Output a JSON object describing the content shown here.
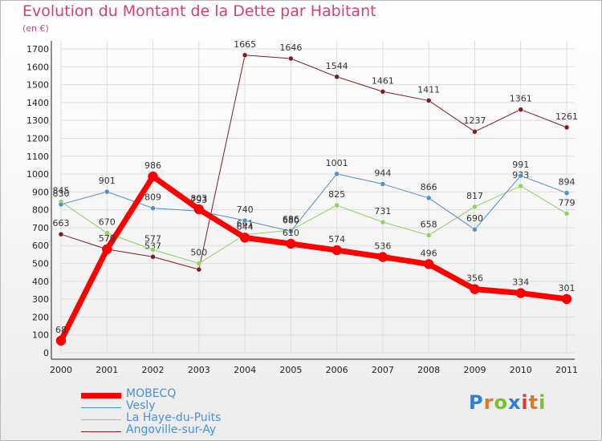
{
  "header": {
    "title": "Evolution du Montant de la Dette par Habitant",
    "subtitle": "(en €)"
  },
  "colors": {
    "title": "#d0407a",
    "axis": "#222222",
    "grid": "#dddddd",
    "legend_text": "#4a90d9"
  },
  "logo": {
    "text": "Proxiti",
    "letters": [
      {
        "ch": "P",
        "color": "#2f7fd1"
      },
      {
        "ch": "r",
        "color": "#e07a1f"
      },
      {
        "ch": "o",
        "color": "#7bbf2a"
      },
      {
        "ch": "x",
        "color": "#2f7fd1"
      },
      {
        "ch": "i",
        "color": "#d93b3b"
      },
      {
        "ch": "t",
        "color": "#e07a1f"
      },
      {
        "ch": "i",
        "color": "#7bbf2a"
      }
    ]
  },
  "chart_data": {
    "type": "line",
    "title": "Evolution du Montant de la Dette par Habitant",
    "ylabel": "(en €)",
    "x": [
      "2000",
      "2001",
      "2002",
      "2003",
      "2004",
      "2005",
      "2006",
      "2007",
      "2008",
      "2009",
      "2010",
      "2011"
    ],
    "ylim": [
      0,
      1700
    ],
    "yticks": [
      0,
      100,
      200,
      300,
      400,
      500,
      600,
      700,
      800,
      900,
      1000,
      1100,
      1200,
      1300,
      1400,
      1500,
      1600,
      1700
    ],
    "grid": true,
    "legend_position": "bottom-left",
    "series": [
      {
        "name": "Angoville-sur-Ay",
        "color": "#7a1e24",
        "width": 1,
        "values": [
          663,
          579,
          537,
          466,
          1665,
          1646,
          1544,
          1461,
          1411,
          1237,
          1361,
          1261
        ],
        "labels": [
          "663",
          "",
          "537",
          "",
          "1665",
          "1646",
          "1544",
          "1461",
          "1411",
          "1237",
          "1361",
          "1261"
        ]
      },
      {
        "name": "La Haye-du-Puits",
        "color": "#8dd35f",
        "width": 1,
        "values": [
          845,
          670,
          577,
          500,
          661,
          686,
          825,
          731,
          658,
          817,
          933,
          779
        ],
        "labels": [
          "845",
          "670",
          "577",
          "500",
          "661",
          "686",
          "825",
          "731",
          "658",
          "817",
          "933",
          "779"
        ]
      },
      {
        "name": "Vesly",
        "color": "#4e8fcc",
        "width": 1,
        "values": [
          830,
          901,
          809,
          793,
          740,
          680,
          1001,
          944,
          866,
          690,
          991,
          894
        ],
        "labels": [
          "830",
          "901",
          "809",
          "793",
          "740",
          "680",
          "1001",
          "944",
          "866",
          "690",
          "991",
          "894"
        ]
      },
      {
        "name": "MOBECQ",
        "color": "#ff0000",
        "width": 7,
        "values": [
          68,
          579,
          986,
          803,
          644,
          610,
          574,
          536,
          496,
          356,
          334,
          301
        ],
        "labels": [
          "68",
          "579",
          "986",
          "803",
          "644",
          "610",
          "574",
          "536",
          "496",
          "356",
          "334",
          "301"
        ]
      }
    ],
    "legend": [
      "MOBECQ",
      "Vesly",
      "La Haye-du-Puits",
      "Angoville-sur-Ay"
    ]
  }
}
